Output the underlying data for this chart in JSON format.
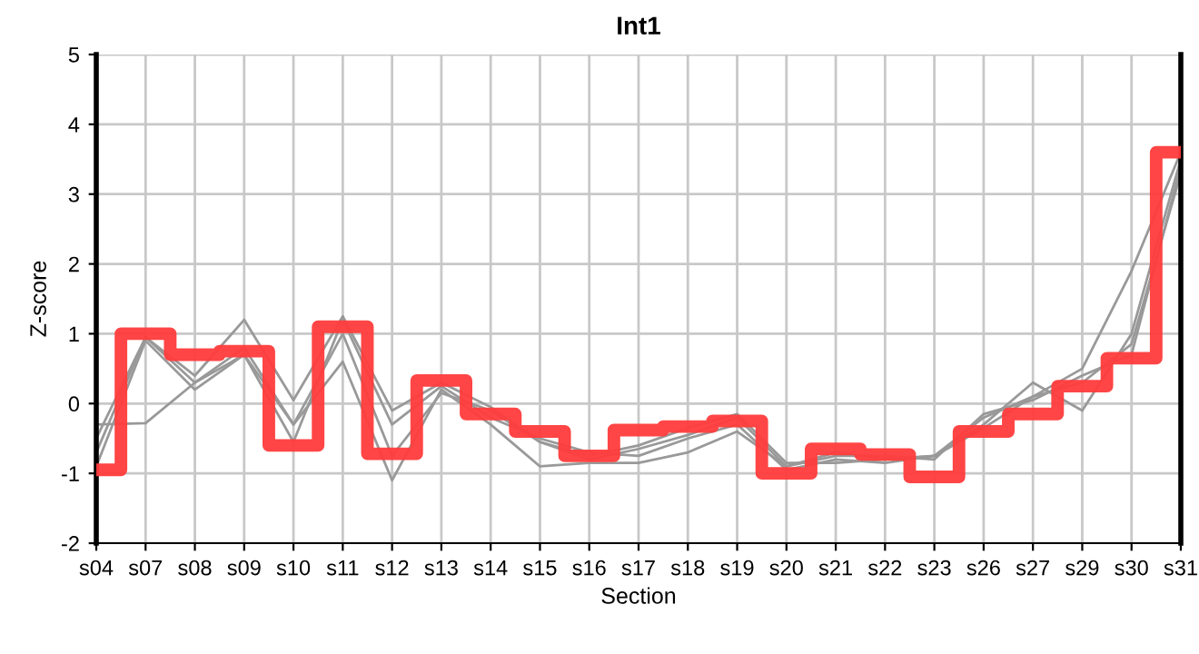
{
  "chart_data": {
    "type": "line",
    "title": "Int1",
    "xlabel": "Section",
    "ylabel": "Z-score",
    "categories": [
      "s04",
      "s07",
      "s08",
      "s09",
      "s10",
      "s11",
      "s12",
      "s13",
      "s14",
      "s15",
      "s16",
      "s17",
      "s18",
      "s19",
      "s20",
      "s21",
      "s22",
      "s23",
      "s26",
      "s27",
      "s29",
      "s30",
      "s31"
    ],
    "ylim": [
      -2,
      5
    ],
    "yticks": [
      -2,
      -1,
      0,
      1,
      2,
      3,
      4,
      5
    ],
    "grid": true,
    "series": [
      {
        "color": "#999999",
        "values": [
          -0.5,
          0.95,
          0.4,
          1.2,
          0.05,
          1.25,
          -0.1,
          0.3,
          -0.05,
          -0.55,
          -0.75,
          -0.6,
          -0.35,
          -0.15,
          -0.85,
          -0.85,
          -0.8,
          -0.75,
          -0.3,
          0.3,
          -0.1,
          1.0,
          3.5
        ]
      },
      {
        "color": "#999999",
        "values": [
          -0.3,
          -0.28,
          0.3,
          0.7,
          -0.3,
          0.6,
          -1.1,
          0.2,
          -0.3,
          -0.9,
          -0.85,
          -0.85,
          -0.7,
          -0.4,
          -0.9,
          -0.7,
          -0.8,
          -0.75,
          -0.2,
          0.1,
          0.5,
          1.9,
          3.6
        ]
      },
      {
        "color": "#999999",
        "values": [
          -0.9,
          0.9,
          0.2,
          0.7,
          -0.55,
          1.2,
          -0.3,
          0.25,
          -0.2,
          -0.5,
          -0.7,
          -0.75,
          -0.5,
          -0.3,
          -0.95,
          -0.8,
          -0.85,
          -0.75,
          -0.35,
          0.1,
          0.3,
          0.85,
          3.3
        ]
      },
      {
        "color": "#999999",
        "values": [
          -0.7,
          0.95,
          0.3,
          0.8,
          -0.3,
          1.0,
          -0.75,
          0.15,
          -0.1,
          -0.55,
          -0.8,
          -0.65,
          -0.45,
          -0.2,
          -0.9,
          -0.75,
          -0.75,
          -0.8,
          -0.15,
          0.05,
          0.4,
          0.7,
          3.4
        ]
      },
      {
        "type": "step",
        "color": "#ff3b3b",
        "values": [
          -0.95,
          1.0,
          0.7,
          0.75,
          -0.6,
          1.1,
          -0.72,
          0.33,
          -0.15,
          -0.4,
          -0.75,
          -0.38,
          -0.33,
          -0.25,
          -1.0,
          -0.65,
          -0.73,
          -1.05,
          -0.4,
          -0.15,
          0.25,
          0.65,
          3.6
        ]
      }
    ]
  }
}
